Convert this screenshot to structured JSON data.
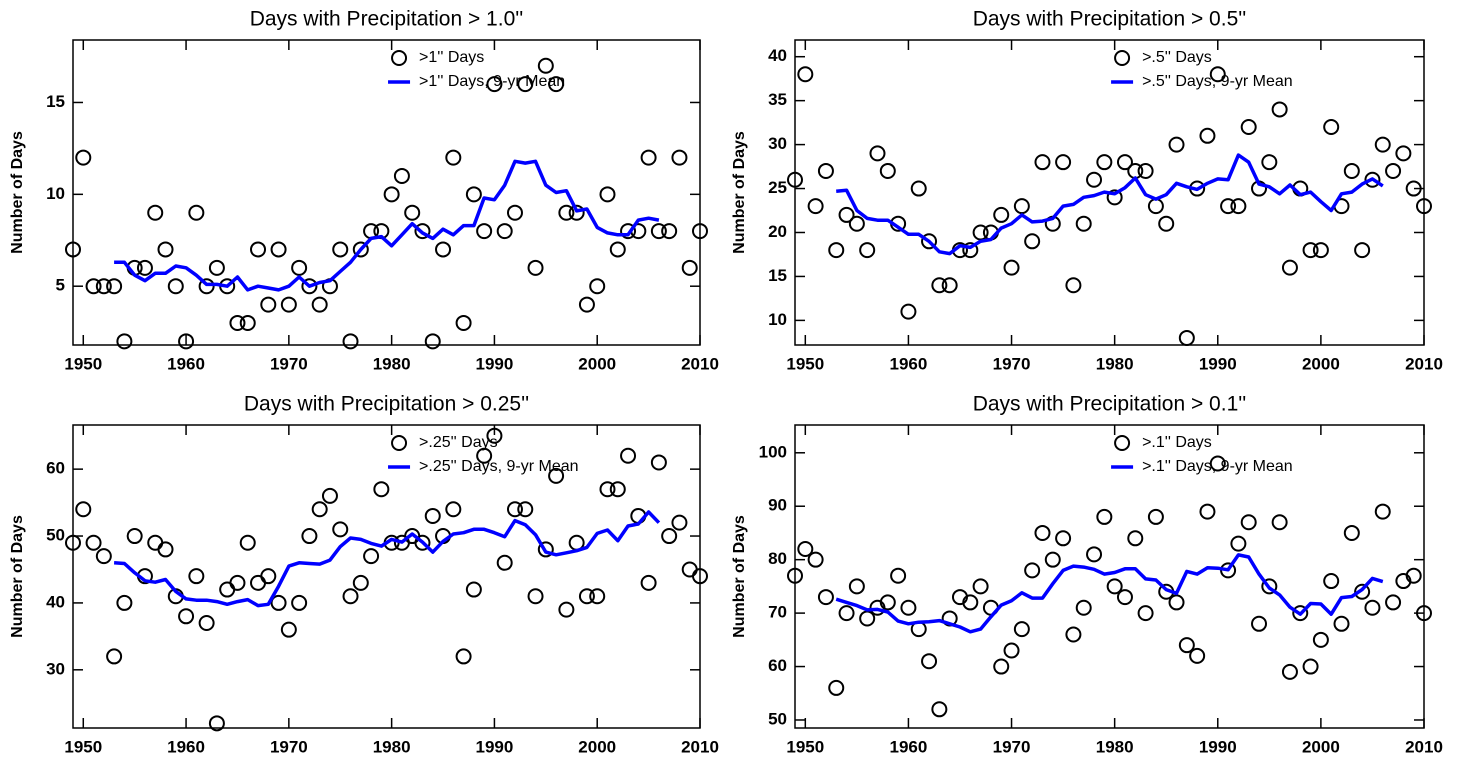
{
  "chart_data": [
    {
      "type": "scatter",
      "title": "Days with Precipitation > 1.0''",
      "ylabel": "Number of Days",
      "xlim": [
        1949,
        2010
      ],
      "ylim": [
        1.8,
        18.4
      ],
      "xticks": [
        1950,
        1960,
        1970,
        1980,
        1990,
        2000,
        2010
      ],
      "yticks": [
        5,
        10,
        15
      ],
      "series": [
        {
          "name": ">1'' Days",
          "marker": "circle",
          "color": "#000000",
          "x": [
            1949,
            1950,
            1951,
            1952,
            1953,
            1954,
            1955,
            1956,
            1957,
            1958,
            1959,
            1960,
            1961,
            1962,
            1963,
            1964,
            1965,
            1966,
            1967,
            1968,
            1969,
            1970,
            1971,
            1972,
            1973,
            1974,
            1975,
            1976,
            1977,
            1978,
            1979,
            1980,
            1981,
            1982,
            1983,
            1984,
            1985,
            1986,
            1987,
            1988,
            1989,
            1990,
            1991,
            1992,
            1993,
            1994,
            1995,
            1996,
            1997,
            1998,
            1999,
            2000,
            2001,
            2002,
            2003,
            2004,
            2005,
            2006,
            2007,
            2008,
            2009,
            2010
          ],
          "values": [
            7,
            12,
            5,
            5,
            5,
            2,
            6,
            6,
            9,
            7,
            5,
            2,
            9,
            5,
            6,
            5,
            3,
            3,
            7,
            4,
            7,
            4,
            6,
            5,
            4,
            5,
            7,
            2,
            7,
            8,
            8,
            10,
            11,
            9,
            8,
            2,
            7,
            12,
            3,
            10,
            8,
            16,
            8,
            9,
            16,
            6,
            17,
            16,
            9,
            9,
            4,
            5,
            10,
            7,
            8,
            8,
            12,
            8,
            8,
            12,
            6,
            8
          ]
        },
        {
          "name": ">1'' Days, 9-yr Mean",
          "marker": "line",
          "color": "#0000ff",
          "x": [
            1953,
            1954,
            1955,
            1956,
            1957,
            1958,
            1959,
            1960,
            1961,
            1962,
            1963,
            1964,
            1965,
            1966,
            1967,
            1968,
            1969,
            1970,
            1971,
            1972,
            1973,
            1974,
            1975,
            1976,
            1977,
            1978,
            1979,
            1980,
            1981,
            1982,
            1983,
            1984,
            1985,
            1986,
            1987,
            1988,
            1989,
            1990,
            1991,
            1992,
            1993,
            1994,
            1995,
            1996,
            1997,
            1998,
            1999,
            2000,
            2001,
            2002,
            2003,
            2004,
            2005,
            2006
          ],
          "values": [
            6.3,
            6.3,
            5.6,
            5.3,
            5.7,
            5.7,
            6.1,
            6.0,
            5.6,
            5.1,
            5.1,
            5.0,
            5.5,
            4.8,
            5.0,
            4.9,
            4.8,
            5.0,
            5.5,
            5.0,
            5.2,
            5.3,
            5.8,
            6.3,
            7.0,
            7.6,
            7.7,
            7.2,
            7.8,
            8.4,
            7.9,
            7.6,
            8.1,
            7.8,
            8.3,
            8.3,
            9.8,
            9.7,
            10.5,
            11.8,
            11.7,
            11.8,
            10.5,
            10.1,
            10.2,
            9.1,
            9.2,
            8.2,
            7.9,
            7.8,
            7.8,
            8.6,
            8.7,
            8.6
          ]
        }
      ]
    },
    {
      "type": "scatter",
      "title": "Days with Precipitation > 0.5''",
      "ylabel": "Number of Days",
      "xlim": [
        1949,
        2010
      ],
      "ylim": [
        7.2,
        41.9
      ],
      "xticks": [
        1950,
        1960,
        1970,
        1980,
        1990,
        2000,
        2010
      ],
      "yticks": [
        10,
        15,
        20,
        25,
        30,
        35,
        40
      ],
      "series": [
        {
          "name": ">.5'' Days",
          "marker": "circle",
          "color": "#000000",
          "x": [
            1949,
            1950,
            1951,
            1952,
            1953,
            1954,
            1955,
            1956,
            1957,
            1958,
            1959,
            1960,
            1961,
            1962,
            1963,
            1964,
            1965,
            1966,
            1967,
            1968,
            1969,
            1970,
            1971,
            1972,
            1973,
            1974,
            1975,
            1976,
            1977,
            1978,
            1979,
            1980,
            1981,
            1982,
            1983,
            1984,
            1985,
            1986,
            1987,
            1988,
            1989,
            1990,
            1991,
            1992,
            1993,
            1994,
            1995,
            1996,
            1997,
            1998,
            1999,
            2000,
            2001,
            2002,
            2003,
            2004,
            2005,
            2006,
            2007,
            2008,
            2009,
            2010
          ],
          "values": [
            26,
            38,
            23,
            27,
            18,
            22,
            21,
            18,
            29,
            27,
            21,
            11,
            25,
            19,
            14,
            14,
            18,
            18,
            20,
            20,
            22,
            16,
            23,
            19,
            28,
            21,
            28,
            14,
            21,
            26,
            28,
            24,
            28,
            27,
            27,
            23,
            21,
            30,
            8,
            25,
            31,
            38,
            23,
            23,
            32,
            25,
            28,
            34,
            16,
            25,
            18,
            18,
            32,
            23,
            27,
            18,
            26,
            30,
            27,
            29,
            25,
            23
          ]
        },
        {
          "name": ">.5'' Days, 9-yr Mean",
          "marker": "line",
          "color": "#0000ff",
          "x": [
            1953,
            1954,
            1955,
            1956,
            1957,
            1958,
            1959,
            1960,
            1961,
            1962,
            1963,
            1964,
            1965,
            1966,
            1967,
            1968,
            1969,
            1970,
            1971,
            1972,
            1973,
            1974,
            1975,
            1976,
            1977,
            1978,
            1979,
            1980,
            1981,
            1982,
            1983,
            1984,
            1985,
            1986,
            1987,
            1988,
            1989,
            1990,
            1991,
            1992,
            1993,
            1994,
            1995,
            1996,
            1997,
            1998,
            1999,
            2000,
            2001,
            2002,
            2003,
            2004,
            2005,
            2006
          ],
          "values": [
            24.7,
            24.8,
            22.5,
            21.6,
            21.4,
            21.4,
            20.6,
            19.8,
            19.8,
            19.0,
            17.8,
            17.6,
            18.5,
            18.3,
            19.0,
            19.2,
            20.5,
            21.0,
            22.0,
            21.2,
            21.3,
            21.6,
            23.0,
            23.2,
            24.0,
            24.2,
            24.6,
            24.4,
            25.1,
            26.2,
            24.3,
            23.8,
            24.3,
            25.6,
            25.2,
            24.9,
            25.6,
            26.1,
            26.0,
            28.8,
            28.0,
            25.5,
            25.2,
            24.4,
            25.4,
            24.3,
            24.6,
            23.5,
            22.5,
            24.4,
            24.6,
            25.5,
            26.1,
            25.3
          ]
        }
      ]
    },
    {
      "type": "scatter",
      "title": "Days with Precipitation > 0.25''",
      "ylabel": "Number of Days",
      "xlim": [
        1949,
        2010
      ],
      "ylim": [
        21.3,
        66.6
      ],
      "xticks": [
        1950,
        1960,
        1970,
        1980,
        1990,
        2000,
        2010
      ],
      "yticks": [
        30,
        40,
        50,
        60
      ],
      "series": [
        {
          "name": ">.25'' Days",
          "marker": "circle",
          "color": "#000000",
          "x": [
            1949,
            1950,
            1951,
            1952,
            1953,
            1954,
            1955,
            1956,
            1957,
            1958,
            1959,
            1960,
            1961,
            1962,
            1963,
            1964,
            1965,
            1966,
            1967,
            1968,
            1969,
            1970,
            1971,
            1972,
            1973,
            1974,
            1975,
            1976,
            1977,
            1978,
            1979,
            1980,
            1981,
            1982,
            1983,
            1984,
            1985,
            1986,
            1987,
            1988,
            1989,
            1990,
            1991,
            1992,
            1993,
            1994,
            1995,
            1996,
            1997,
            1998,
            1999,
            2000,
            2001,
            2002,
            2003,
            2004,
            2005,
            2006,
            2007,
            2008,
            2009,
            2010
          ],
          "values": [
            49,
            54,
            49,
            47,
            32,
            40,
            50,
            44,
            49,
            48,
            41,
            38,
            44,
            37,
            22,
            42,
            43,
            49,
            43,
            44,
            40,
            36,
            40,
            50,
            54,
            56,
            51,
            41,
            43,
            47,
            57,
            49,
            49,
            50,
            49,
            53,
            50,
            54,
            32,
            42,
            62,
            65,
            46,
            54,
            54,
            41,
            48,
            59,
            39,
            49,
            41,
            41,
            57,
            57,
            62,
            53,
            43,
            61,
            50,
            52,
            45,
            44
          ]
        },
        {
          "name": ">.25'' Days, 9-yr Mean",
          "marker": "line",
          "color": "#0000ff",
          "x": [
            1953,
            1954,
            1955,
            1956,
            1957,
            1958,
            1959,
            1960,
            1961,
            1962,
            1963,
            1964,
            1965,
            1966,
            1967,
            1968,
            1969,
            1970,
            1971,
            1972,
            1973,
            1974,
            1975,
            1976,
            1977,
            1978,
            1979,
            1980,
            1981,
            1982,
            1983,
            1984,
            1985,
            1986,
            1987,
            1988,
            1989,
            1990,
            1991,
            1992,
            1993,
            1994,
            1995,
            1996,
            1997,
            1998,
            1999,
            2000,
            2001,
            2002,
            2003,
            2004,
            2005,
            2006
          ],
          "values": [
            46,
            45.9,
            44.5,
            43.3,
            43.1,
            43.5,
            41.7,
            40.6,
            40.4,
            40.4,
            40.2,
            39.8,
            40.2,
            40.5,
            39.6,
            39.8,
            42.5,
            45.5,
            46.0,
            45.9,
            45.8,
            46.4,
            48.4,
            49.7,
            49.5,
            48.9,
            48.5,
            49.5,
            49.1,
            50.3,
            49.1,
            47.6,
            49.2,
            50.3,
            50.5,
            51.0,
            51.0,
            50.5,
            49.9,
            52.3,
            51.7,
            50.2,
            47.6,
            47.2,
            47.5,
            47.8,
            48.3,
            50.4,
            50.9,
            49.3,
            51.5,
            51.8,
            53.6,
            52.0
          ]
        }
      ]
    },
    {
      "type": "scatter",
      "title": "Days with Precipitation > 0.1''",
      "ylabel": "Number of Days",
      "xlim": [
        1949,
        2010
      ],
      "ylim": [
        48.5,
        105.2
      ],
      "xticks": [
        1950,
        1960,
        1970,
        1980,
        1990,
        2000,
        2010
      ],
      "yticks": [
        50,
        60,
        70,
        80,
        90,
        100
      ],
      "series": [
        {
          "name": ">.1'' Days",
          "marker": "circle",
          "color": "#000000",
          "x": [
            1949,
            1950,
            1951,
            1952,
            1953,
            1954,
            1955,
            1956,
            1957,
            1958,
            1959,
            1960,
            1961,
            1962,
            1963,
            1964,
            1965,
            1966,
            1967,
            1968,
            1969,
            1970,
            1971,
            1972,
            1973,
            1974,
            1975,
            1976,
            1977,
            1978,
            1979,
            1980,
            1981,
            1982,
            1983,
            1984,
            1985,
            1986,
            1987,
            1988,
            1989,
            1990,
            1991,
            1992,
            1993,
            1994,
            1995,
            1996,
            1997,
            1998,
            1999,
            2000,
            2001,
            2002,
            2003,
            2004,
            2005,
            2006,
            2007,
            2008,
            2009,
            2010
          ],
          "values": [
            77,
            82,
            80,
            73,
            56,
            70,
            75,
            69,
            71,
            72,
            77,
            71,
            67,
            61,
            52,
            69,
            73,
            72,
            75,
            71,
            60,
            63,
            67,
            78,
            85,
            80,
            84,
            66,
            71,
            81,
            88,
            75,
            73,
            84,
            70,
            88,
            74,
            72,
            64,
            62,
            89,
            98,
            78,
            83,
            87,
            68,
            75,
            87,
            59,
            70,
            60,
            65,
            76,
            68,
            85,
            74,
            71,
            89,
            72,
            76,
            77,
            70
          ]
        },
        {
          "name": ">.1'' Days, 9-yr Mean",
          "marker": "line",
          "color": "#0000ff",
          "x": [
            1953,
            1954,
            1955,
            1956,
            1957,
            1958,
            1959,
            1960,
            1961,
            1962,
            1963,
            1964,
            1965,
            1966,
            1967,
            1968,
            1969,
            1970,
            1971,
            1972,
            1973,
            1974,
            1975,
            1976,
            1977,
            1978,
            1979,
            1980,
            1981,
            1982,
            1983,
            1984,
            1985,
            1986,
            1987,
            1988,
            1989,
            1990,
            1991,
            1992,
            1993,
            1994,
            1995,
            1996,
            1997,
            1998,
            1999,
            2000,
            2001,
            2002,
            2003,
            2004,
            2005,
            2006
          ],
          "values": [
            72.6,
            72.0,
            71.4,
            70.6,
            70.7,
            70.2,
            68.5,
            68.0,
            68.3,
            68.4,
            68.6,
            68.0,
            67.4,
            66.5,
            67.0,
            69.3,
            71.5,
            72.3,
            73.8,
            72.8,
            72.8,
            75.5,
            78.0,
            78.8,
            78.6,
            78.2,
            77.3,
            77.6,
            78.3,
            78.3,
            76.4,
            76.2,
            74.4,
            73.7,
            77.8,
            77.3,
            78.5,
            78.4,
            78.1,
            80.9,
            80.5,
            77.3,
            74.7,
            73.4,
            71.1,
            69.8,
            71.8,
            71.7,
            69.8,
            72.9,
            73.1,
            74.4,
            76.5,
            75.9
          ]
        }
      ]
    }
  ]
}
